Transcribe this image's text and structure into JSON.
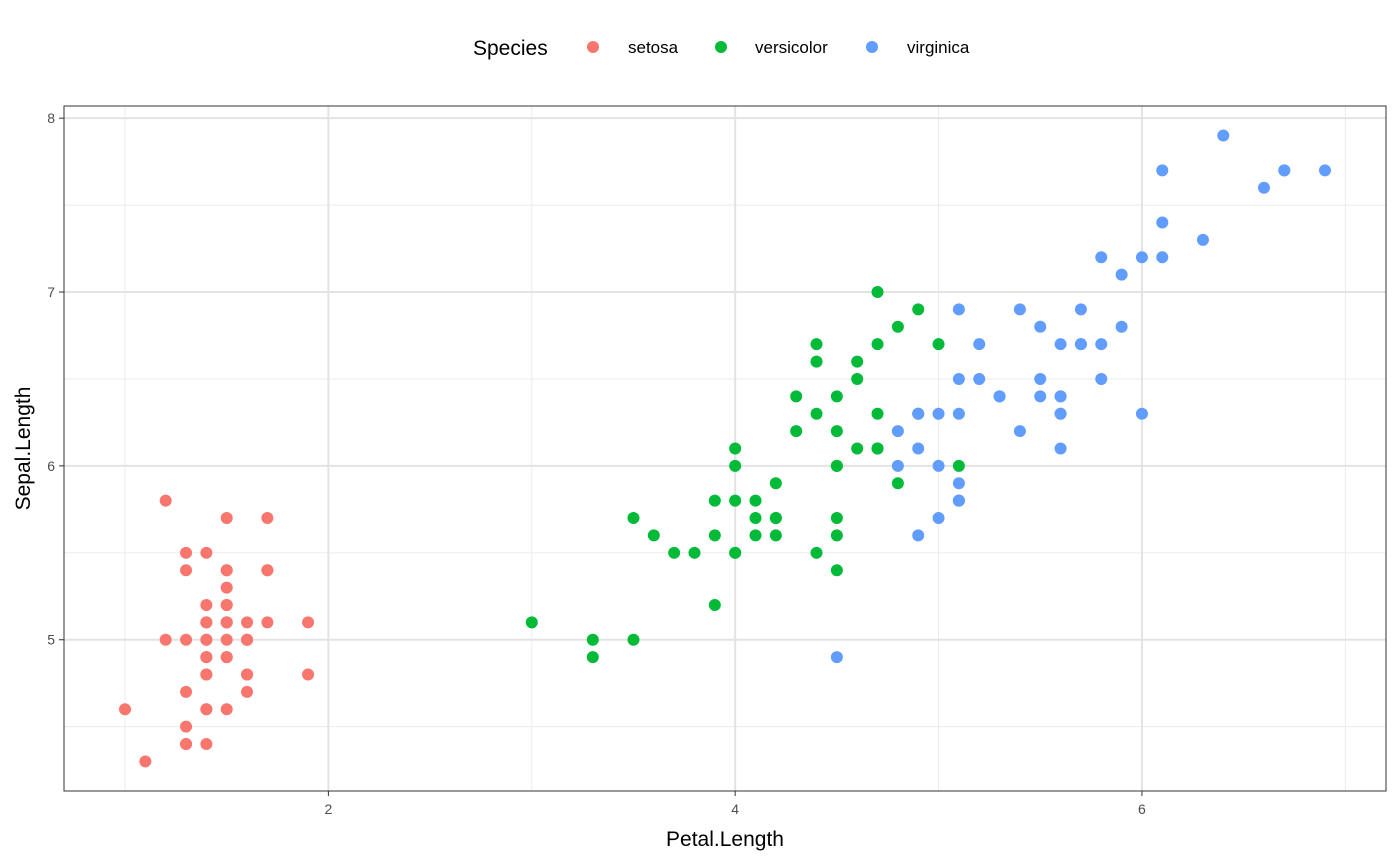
{
  "chart_data": {
    "type": "scatter",
    "xlabel": "Petal.Length",
    "ylabel": "Sepal.Length",
    "xlim": [
      0.7,
      7.2
    ],
    "ylim": [
      4.13,
      8.07
    ],
    "x_ticks": [
      2,
      4,
      6
    ],
    "x_tick_labels": [
      "2",
      "4",
      "6"
    ],
    "y_ticks": [
      5,
      6,
      7,
      8
    ],
    "y_tick_labels": [
      "5",
      "6",
      "7",
      "8"
    ],
    "x_minor_ticks": [
      1,
      3,
      5,
      7
    ],
    "y_minor_ticks": [
      4.5,
      5.5,
      6.5,
      7.5
    ],
    "grid": true,
    "legend": {
      "title": "Species",
      "position": "top"
    },
    "series": [
      {
        "name": "setosa",
        "color": "#F8766D",
        "points": [
          [
            1.4,
            5.1
          ],
          [
            1.4,
            4.9
          ],
          [
            1.3,
            4.7
          ],
          [
            1.5,
            4.6
          ],
          [
            1.4,
            5.0
          ],
          [
            1.7,
            5.4
          ],
          [
            1.4,
            4.6
          ],
          [
            1.5,
            5.0
          ],
          [
            1.4,
            4.4
          ],
          [
            1.5,
            4.9
          ],
          [
            1.5,
            5.4
          ],
          [
            1.6,
            4.8
          ],
          [
            1.4,
            4.8
          ],
          [
            1.1,
            4.3
          ],
          [
            1.2,
            5.8
          ],
          [
            1.5,
            5.7
          ],
          [
            1.3,
            5.4
          ],
          [
            1.4,
            5.1
          ],
          [
            1.7,
            5.7
          ],
          [
            1.5,
            5.1
          ],
          [
            1.7,
            5.4
          ],
          [
            1.5,
            5.1
          ],
          [
            1.0,
            4.6
          ],
          [
            1.7,
            5.1
          ],
          [
            1.9,
            4.8
          ],
          [
            1.6,
            5.0
          ],
          [
            1.6,
            5.0
          ],
          [
            1.5,
            5.2
          ],
          [
            1.4,
            5.2
          ],
          [
            1.6,
            4.7
          ],
          [
            1.6,
            4.8
          ],
          [
            1.5,
            5.4
          ],
          [
            1.5,
            5.2
          ],
          [
            1.4,
            5.5
          ],
          [
            1.5,
            4.9
          ],
          [
            1.2,
            5.0
          ],
          [
            1.3,
            5.5
          ],
          [
            1.4,
            4.9
          ],
          [
            1.3,
            4.4
          ],
          [
            1.5,
            5.1
          ],
          [
            1.3,
            5.0
          ],
          [
            1.3,
            4.5
          ],
          [
            1.3,
            4.4
          ],
          [
            1.6,
            5.0
          ],
          [
            1.9,
            5.1
          ],
          [
            1.4,
            4.8
          ],
          [
            1.6,
            5.1
          ],
          [
            1.4,
            4.6
          ],
          [
            1.5,
            5.3
          ],
          [
            1.4,
            5.0
          ]
        ]
      },
      {
        "name": "versicolor",
        "color": "#00BA38",
        "points": [
          [
            4.7,
            7.0
          ],
          [
            4.5,
            6.4
          ],
          [
            4.9,
            6.9
          ],
          [
            4.0,
            5.5
          ],
          [
            4.6,
            6.5
          ],
          [
            4.5,
            5.7
          ],
          [
            4.7,
            6.3
          ],
          [
            3.3,
            4.9
          ],
          [
            4.6,
            6.6
          ],
          [
            3.9,
            5.2
          ],
          [
            3.5,
            5.0
          ],
          [
            4.2,
            5.9
          ],
          [
            4.0,
            6.0
          ],
          [
            4.7,
            6.1
          ],
          [
            3.6,
            5.6
          ],
          [
            4.4,
            6.7
          ],
          [
            4.5,
            5.6
          ],
          [
            4.1,
            5.8
          ],
          [
            4.5,
            6.2
          ],
          [
            3.9,
            5.6
          ],
          [
            4.8,
            5.9
          ],
          [
            4.0,
            6.1
          ],
          [
            4.9,
            6.3
          ],
          [
            4.7,
            6.1
          ],
          [
            4.3,
            6.4
          ],
          [
            4.4,
            6.6
          ],
          [
            4.8,
            6.8
          ],
          [
            5.0,
            6.7
          ],
          [
            4.5,
            6.0
          ],
          [
            3.5,
            5.7
          ],
          [
            3.8,
            5.5
          ],
          [
            3.7,
            5.5
          ],
          [
            3.9,
            5.8
          ],
          [
            5.1,
            6.0
          ],
          [
            4.5,
            5.4
          ],
          [
            4.5,
            6.0
          ],
          [
            4.7,
            6.7
          ],
          [
            4.4,
            6.3
          ],
          [
            4.1,
            5.6
          ],
          [
            4.0,
            5.5
          ],
          [
            4.4,
            5.5
          ],
          [
            4.6,
            6.1
          ],
          [
            4.0,
            5.8
          ],
          [
            3.3,
            5.0
          ],
          [
            4.2,
            5.6
          ],
          [
            4.2,
            5.7
          ],
          [
            4.2,
            5.7
          ],
          [
            4.3,
            6.2
          ],
          [
            3.0,
            5.1
          ],
          [
            4.1,
            5.7
          ]
        ]
      },
      {
        "name": "virginica",
        "color": "#619CFF",
        "points": [
          [
            6.0,
            6.3
          ],
          [
            5.1,
            5.8
          ],
          [
            5.9,
            7.1
          ],
          [
            5.6,
            6.3
          ],
          [
            5.8,
            6.5
          ],
          [
            6.6,
            7.6
          ],
          [
            4.5,
            4.9
          ],
          [
            6.3,
            7.3
          ],
          [
            5.8,
            6.7
          ],
          [
            6.1,
            7.2
          ],
          [
            5.1,
            6.5
          ],
          [
            5.3,
            6.4
          ],
          [
            5.5,
            6.8
          ],
          [
            5.0,
            5.7
          ],
          [
            5.1,
            5.8
          ],
          [
            5.3,
            6.4
          ],
          [
            5.5,
            6.5
          ],
          [
            6.7,
            7.7
          ],
          [
            6.9,
            7.7
          ],
          [
            5.0,
            6.0
          ],
          [
            5.7,
            6.9
          ],
          [
            4.9,
            5.6
          ],
          [
            6.7,
            7.7
          ],
          [
            4.9,
            6.3
          ],
          [
            5.7,
            6.7
          ],
          [
            6.0,
            7.2
          ],
          [
            4.8,
            6.2
          ],
          [
            4.9,
            6.1
          ],
          [
            5.6,
            6.4
          ],
          [
            5.8,
            7.2
          ],
          [
            6.1,
            7.4
          ],
          [
            6.4,
            7.9
          ],
          [
            5.6,
            6.4
          ],
          [
            5.1,
            6.3
          ],
          [
            5.6,
            6.1
          ],
          [
            6.1,
            7.7
          ],
          [
            5.6,
            6.3
          ],
          [
            5.5,
            6.4
          ],
          [
            4.8,
            6.0
          ],
          [
            5.4,
            6.9
          ],
          [
            5.6,
            6.7
          ],
          [
            5.1,
            6.9
          ],
          [
            5.1,
            5.8
          ],
          [
            5.9,
            6.8
          ],
          [
            5.7,
            6.7
          ],
          [
            5.2,
            6.7
          ],
          [
            5.0,
            6.3
          ],
          [
            5.2,
            6.5
          ],
          [
            5.4,
            6.2
          ],
          [
            5.1,
            5.9
          ]
        ]
      }
    ]
  }
}
